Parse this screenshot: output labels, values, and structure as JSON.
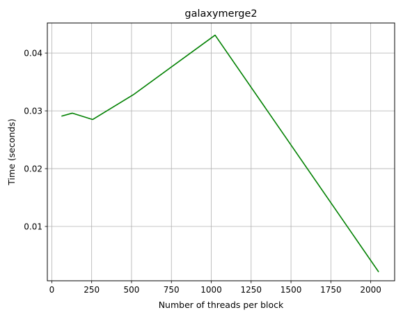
{
  "chart_data": {
    "type": "line",
    "title": "galaxymerge2",
    "xlabel": "Number of threads per block",
    "ylabel": "Time (seconds)",
    "xlim": [
      -28,
      2150
    ],
    "ylim": [
      0.0006,
      0.0452
    ],
    "x_ticks": [
      0,
      250,
      500,
      750,
      1000,
      1250,
      1500,
      1750,
      2000
    ],
    "x_tick_labels": [
      "0",
      "250",
      "500",
      "750",
      "1000",
      "1250",
      "1500",
      "1750",
      "2000"
    ],
    "y_ticks": [
      0.01,
      0.02,
      0.03,
      0.04
    ],
    "y_tick_labels": [
      "0.01",
      "0.02",
      "0.03",
      "0.04"
    ],
    "grid": true,
    "series": [
      {
        "color": "#008000",
        "x": [
          64,
          128,
          256,
          512,
          1024,
          2048
        ],
        "y": [
          0.0291,
          0.0296,
          0.0285,
          0.0328,
          0.0431,
          0.0022
        ]
      }
    ]
  }
}
